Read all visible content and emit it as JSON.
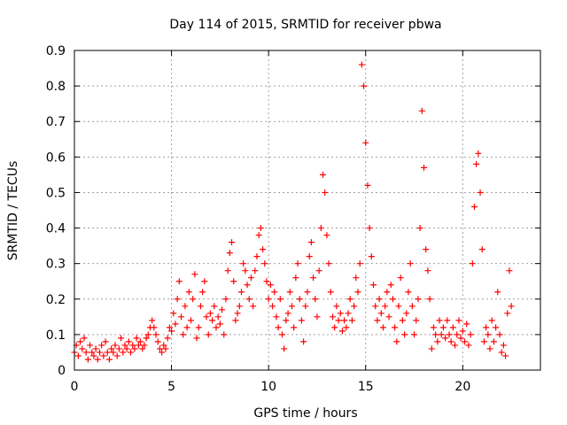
{
  "chart_data": {
    "type": "scatter",
    "title": "Day 114 of 2015, SRMTID for receiver pbwa",
    "xlabel": "GPS time / hours",
    "ylabel": "SRMTID / TECUs",
    "xlim": [
      0,
      24
    ],
    "ylim": [
      0,
      0.9
    ],
    "xticks": [
      0,
      5,
      10,
      15,
      20
    ],
    "xtick_labels": [
      "0",
      "5",
      "10",
      "15",
      "20"
    ],
    "yticks": [
      0,
      0.1,
      0.2,
      0.3,
      0.4,
      0.5,
      0.6,
      0.7,
      0.8,
      0.9
    ],
    "ytick_labels": [
      "0",
      "0.1",
      "0.2",
      "0.3",
      "0.4",
      "0.5",
      "0.6",
      "0.7",
      "0.8",
      "0.9"
    ],
    "grid": true,
    "marker": "+",
    "marker_color": "#ff0000",
    "series": [
      {
        "name": "SRMTID",
        "points": [
          [
            0.0,
            0.05
          ],
          [
            0.1,
            0.07
          ],
          [
            0.2,
            0.04
          ],
          [
            0.3,
            0.08
          ],
          [
            0.4,
            0.06
          ],
          [
            0.5,
            0.09
          ],
          [
            0.6,
            0.05
          ],
          [
            0.7,
            0.03
          ],
          [
            0.8,
            0.07
          ],
          [
            0.9,
            0.05
          ],
          [
            1.0,
            0.04
          ],
          [
            1.1,
            0.06
          ],
          [
            1.2,
            0.03
          ],
          [
            1.3,
            0.05
          ],
          [
            1.4,
            0.07
          ],
          [
            1.5,
            0.04
          ],
          [
            1.6,
            0.08
          ],
          [
            1.7,
            0.05
          ],
          [
            1.8,
            0.03
          ],
          [
            1.9,
            0.06
          ],
          [
            2.0,
            0.05
          ],
          [
            2.1,
            0.07
          ],
          [
            2.2,
            0.04
          ],
          [
            2.3,
            0.06
          ],
          [
            2.4,
            0.09
          ],
          [
            2.5,
            0.05
          ],
          [
            2.6,
            0.07
          ],
          [
            2.7,
            0.06
          ],
          [
            2.8,
            0.08
          ],
          [
            2.9,
            0.05
          ],
          [
            3.0,
            0.07
          ],
          [
            3.1,
            0.06
          ],
          [
            3.2,
            0.09
          ],
          [
            3.3,
            0.07
          ],
          [
            3.4,
            0.08
          ],
          [
            3.5,
            0.06
          ],
          [
            3.6,
            0.07
          ],
          [
            3.7,
            0.09
          ],
          [
            3.8,
            0.1
          ],
          [
            3.9,
            0.12
          ],
          [
            4.0,
            0.14
          ],
          [
            4.1,
            0.12
          ],
          [
            4.2,
            0.1
          ],
          [
            4.3,
            0.08
          ],
          [
            4.4,
            0.06
          ],
          [
            4.5,
            0.05
          ],
          [
            4.6,
            0.07
          ],
          [
            4.7,
            0.06
          ],
          [
            4.8,
            0.09
          ],
          [
            4.9,
            0.12
          ],
          [
            5.0,
            0.11
          ],
          [
            5.1,
            0.16
          ],
          [
            5.2,
            0.13
          ],
          [
            5.3,
            0.2
          ],
          [
            5.4,
            0.25
          ],
          [
            5.5,
            0.15
          ],
          [
            5.6,
            0.1
          ],
          [
            5.7,
            0.18
          ],
          [
            5.8,
            0.12
          ],
          [
            5.9,
            0.22
          ],
          [
            6.0,
            0.14
          ],
          [
            6.1,
            0.2
          ],
          [
            6.2,
            0.27
          ],
          [
            6.3,
            0.09
          ],
          [
            6.4,
            0.12
          ],
          [
            6.5,
            0.18
          ],
          [
            6.6,
            0.22
          ],
          [
            6.7,
            0.25
          ],
          [
            6.8,
            0.15
          ],
          [
            6.9,
            0.1
          ],
          [
            7.0,
            0.16
          ],
          [
            7.1,
            0.14
          ],
          [
            7.2,
            0.18
          ],
          [
            7.3,
            0.12
          ],
          [
            7.4,
            0.15
          ],
          [
            7.5,
            0.13
          ],
          [
            7.6,
            0.17
          ],
          [
            7.7,
            0.1
          ],
          [
            7.8,
            0.2
          ],
          [
            7.9,
            0.28
          ],
          [
            8.0,
            0.33
          ],
          [
            8.1,
            0.36
          ],
          [
            8.2,
            0.25
          ],
          [
            8.3,
            0.14
          ],
          [
            8.4,
            0.16
          ],
          [
            8.5,
            0.18
          ],
          [
            8.6,
            0.22
          ],
          [
            8.7,
            0.3
          ],
          [
            8.8,
            0.28
          ],
          [
            8.9,
            0.24
          ],
          [
            9.0,
            0.2
          ],
          [
            9.1,
            0.26
          ],
          [
            9.2,
            0.18
          ],
          [
            9.3,
            0.28
          ],
          [
            9.4,
            0.32
          ],
          [
            9.5,
            0.38
          ],
          [
            9.6,
            0.4
          ],
          [
            9.7,
            0.34
          ],
          [
            9.8,
            0.3
          ],
          [
            9.9,
            0.25
          ],
          [
            10.0,
            0.2
          ],
          [
            10.1,
            0.24
          ],
          [
            10.2,
            0.18
          ],
          [
            10.3,
            0.22
          ],
          [
            10.4,
            0.15
          ],
          [
            10.5,
            0.12
          ],
          [
            10.6,
            0.2
          ],
          [
            10.7,
            0.1
          ],
          [
            10.8,
            0.06
          ],
          [
            10.9,
            0.14
          ],
          [
            11.0,
            0.16
          ],
          [
            11.1,
            0.22
          ],
          [
            11.2,
            0.18
          ],
          [
            11.3,
            0.12
          ],
          [
            11.4,
            0.26
          ],
          [
            11.5,
            0.3
          ],
          [
            11.6,
            0.2
          ],
          [
            11.7,
            0.14
          ],
          [
            11.8,
            0.08
          ],
          [
            11.9,
            0.18
          ],
          [
            12.0,
            0.22
          ],
          [
            12.1,
            0.32
          ],
          [
            12.2,
            0.36
          ],
          [
            12.3,
            0.26
          ],
          [
            12.4,
            0.2
          ],
          [
            12.5,
            0.15
          ],
          [
            12.6,
            0.28
          ],
          [
            12.7,
            0.4
          ],
          [
            12.8,
            0.55
          ],
          [
            12.9,
            0.5
          ],
          [
            13.0,
            0.38
          ],
          [
            13.1,
            0.3
          ],
          [
            13.2,
            0.22
          ],
          [
            13.3,
            0.15
          ],
          [
            13.4,
            0.12
          ],
          [
            13.5,
            0.18
          ],
          [
            13.6,
            0.14
          ],
          [
            13.7,
            0.16
          ],
          [
            13.8,
            0.11
          ],
          [
            13.9,
            0.14
          ],
          [
            14.0,
            0.12
          ],
          [
            14.1,
            0.16
          ],
          [
            14.2,
            0.2
          ],
          [
            14.3,
            0.14
          ],
          [
            14.4,
            0.18
          ],
          [
            14.5,
            0.26
          ],
          [
            14.6,
            0.22
          ],
          [
            14.7,
            0.3
          ],
          [
            14.8,
            0.86
          ],
          [
            14.9,
            0.8
          ],
          [
            15.0,
            0.64
          ],
          [
            15.1,
            0.52
          ],
          [
            15.2,
            0.4
          ],
          [
            15.3,
            0.32
          ],
          [
            15.4,
            0.24
          ],
          [
            15.5,
            0.18
          ],
          [
            15.6,
            0.14
          ],
          [
            15.7,
            0.2
          ],
          [
            15.8,
            0.16
          ],
          [
            15.9,
            0.12
          ],
          [
            16.0,
            0.18
          ],
          [
            16.1,
            0.22
          ],
          [
            16.2,
            0.15
          ],
          [
            16.3,
            0.24
          ],
          [
            16.4,
            0.2
          ],
          [
            16.5,
            0.12
          ],
          [
            16.6,
            0.08
          ],
          [
            16.7,
            0.18
          ],
          [
            16.8,
            0.26
          ],
          [
            16.9,
            0.14
          ],
          [
            17.0,
            0.1
          ],
          [
            17.1,
            0.16
          ],
          [
            17.2,
            0.22
          ],
          [
            17.3,
            0.3
          ],
          [
            17.4,
            0.18
          ],
          [
            17.5,
            0.1
          ],
          [
            17.6,
            0.14
          ],
          [
            17.7,
            0.2
          ],
          [
            17.8,
            0.4
          ],
          [
            17.9,
            0.73
          ],
          [
            18.0,
            0.57
          ],
          [
            18.1,
            0.34
          ],
          [
            18.2,
            0.28
          ],
          [
            18.3,
            0.2
          ],
          [
            18.4,
            0.06
          ],
          [
            18.5,
            0.12
          ],
          [
            18.6,
            0.1
          ],
          [
            18.7,
            0.08
          ],
          [
            18.8,
            0.14
          ],
          [
            18.9,
            0.1
          ],
          [
            19.0,
            0.12
          ],
          [
            19.1,
            0.09
          ],
          [
            19.2,
            0.14
          ],
          [
            19.3,
            0.1
          ],
          [
            19.4,
            0.08
          ],
          [
            19.5,
            0.12
          ],
          [
            19.6,
            0.07
          ],
          [
            19.7,
            0.1
          ],
          [
            19.8,
            0.14
          ],
          [
            19.9,
            0.09
          ],
          [
            20.0,
            0.11
          ],
          [
            20.1,
            0.08
          ],
          [
            20.2,
            0.13
          ],
          [
            20.3,
            0.07
          ],
          [
            20.4,
            0.1
          ],
          [
            20.5,
            0.3
          ],
          [
            20.6,
            0.46
          ],
          [
            20.7,
            0.58
          ],
          [
            20.8,
            0.61
          ],
          [
            20.9,
            0.5
          ],
          [
            21.0,
            0.34
          ],
          [
            21.1,
            0.08
          ],
          [
            21.2,
            0.12
          ],
          [
            21.3,
            0.1
          ],
          [
            21.4,
            0.06
          ],
          [
            21.5,
            0.14
          ],
          [
            21.6,
            0.08
          ],
          [
            21.7,
            0.12
          ],
          [
            21.8,
            0.22
          ],
          [
            21.9,
            0.1
          ],
          [
            22.0,
            0.05
          ],
          [
            22.1,
            0.07
          ],
          [
            22.2,
            0.04
          ],
          [
            22.3,
            0.16
          ],
          [
            22.4,
            0.28
          ],
          [
            22.5,
            0.18
          ]
        ]
      }
    ]
  }
}
